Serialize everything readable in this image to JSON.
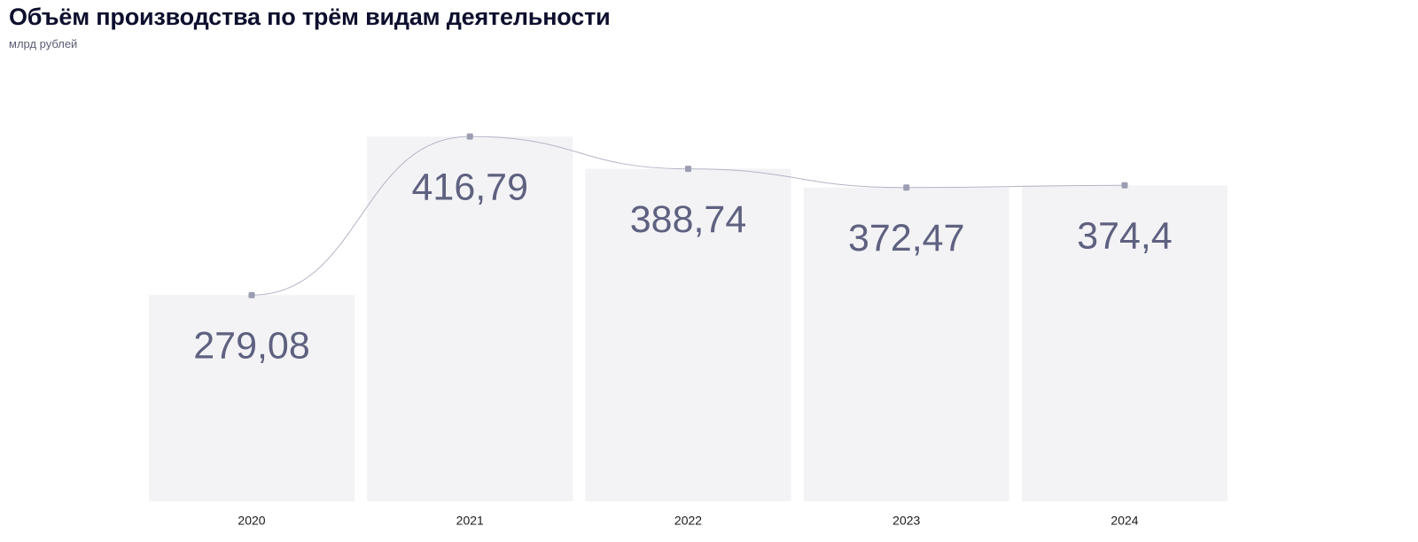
{
  "header": {
    "title": "Объём производства по трём видам деятельности",
    "subtitle": "млрд рублей"
  },
  "chart_data": {
    "type": "bar",
    "title": "Объём производства по трём видам деятельности",
    "subtitle": "млрд рублей",
    "categories": [
      "2020",
      "2021",
      "2022",
      "2023",
      "2024"
    ],
    "values": [
      279.08,
      416.79,
      388.74,
      372.47,
      374.4
    ],
    "value_labels": [
      "279,08",
      "416,79",
      "388,74",
      "372,47",
      "374,4"
    ],
    "overlay_line": true,
    "xlabel": "",
    "ylabel": "",
    "ylim": [
      100,
      420
    ],
    "grid": false,
    "colors": {
      "bar": "#f3f3f6",
      "line": "#b4b5c6",
      "marker": "#9c9db2",
      "value_text": "#5f6180"
    }
  }
}
